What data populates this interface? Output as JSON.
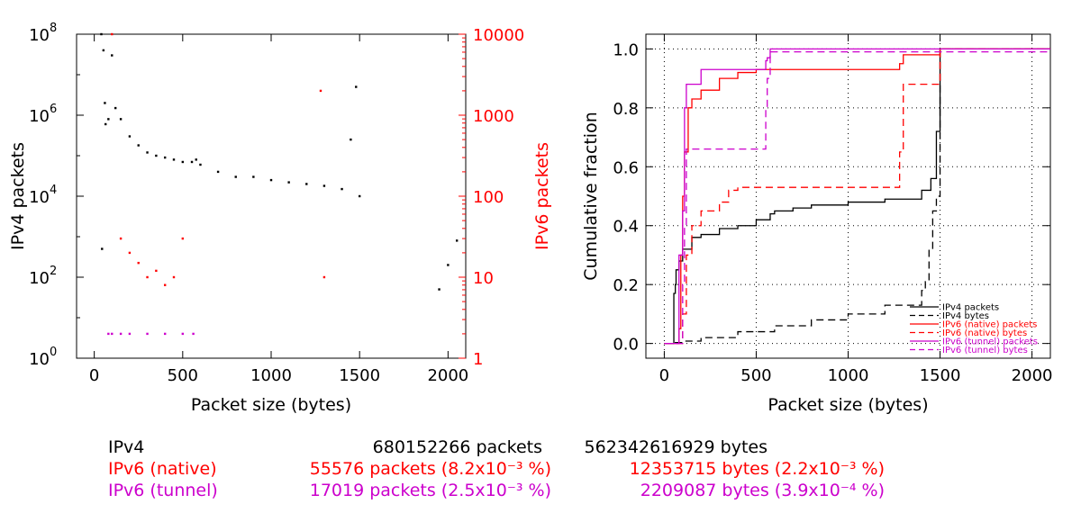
{
  "chart_data": [
    {
      "type": "scatter",
      "xlabel": "Packet size (bytes)",
      "ylabel_left": "IPv4 packets",
      "ylabel_right": "IPv6 packets",
      "xlim": [
        -100,
        2100
      ],
      "xticks": [
        0,
        500,
        1000,
        1500,
        2000
      ],
      "ylim_left_log10": [
        0,
        8
      ],
      "ylim_right_log10": [
        0,
        4
      ],
      "ytick_labels_left": [
        "10^0",
        "10^2",
        "10^4",
        "10^6",
        "10^8"
      ],
      "ytick_labels_right": [
        "1",
        "10",
        "100",
        "1000",
        "10000"
      ],
      "y_scale": "log",
      "series": [
        {
          "name": "IPv4",
          "color": "#000000",
          "axis": "left",
          "points": [
            [
              40,
              100000000.0
            ],
            [
              44,
              500
            ],
            [
              52,
              40000000.0
            ],
            [
              60,
              2000000.0
            ],
            [
              64,
              600000.0
            ],
            [
              80,
              800000.0
            ],
            [
              100,
              30000000.0
            ],
            [
              120,
              1500000.0
            ],
            [
              150,
              800000.0
            ],
            [
              200,
              300000.0
            ],
            [
              250,
              180000.0
            ],
            [
              300,
              120000.0
            ],
            [
              350,
              100000.0
            ],
            [
              400,
              90000.0
            ],
            [
              450,
              80000.0
            ],
            [
              500,
              70000.0
            ],
            [
              552,
              70000.0
            ],
            [
              576,
              80000.0
            ],
            [
              600,
              60000.0
            ],
            [
              700,
              40000.0
            ],
            [
              800,
              30000.0
            ],
            [
              900,
              30000.0
            ],
            [
              1000,
              25000.0
            ],
            [
              1100,
              22000.0
            ],
            [
              1200,
              20000.0
            ],
            [
              1300,
              18000.0
            ],
            [
              1400,
              15000.0
            ],
            [
              1450,
              250000.0
            ],
            [
              1480,
              5000000.0
            ],
            [
              1500,
              10000.0
            ],
            [
              1950,
              50
            ],
            [
              2000,
              200
            ],
            [
              2050,
              800
            ]
          ]
        },
        {
          "name": "IPv6 (native)",
          "color": "#ff0000",
          "axis": "right",
          "points": [
            [
              100,
              10000
            ],
            [
              150,
              30
            ],
            [
              200,
              20
            ],
            [
              250,
              15
            ],
            [
              300,
              10
            ],
            [
              350,
              12
            ],
            [
              400,
              8
            ],
            [
              450,
              10
            ],
            [
              500,
              30
            ],
            [
              1280,
              2000
            ],
            [
              1300,
              10
            ]
          ]
        },
        {
          "name": "IPv6 (tunnel)",
          "color": "#cc00cc",
          "axis": "right",
          "points": [
            [
              80,
              2
            ],
            [
              100,
              2
            ],
            [
              150,
              2
            ],
            [
              200,
              2
            ],
            [
              300,
              2
            ],
            [
              400,
              2
            ],
            [
              500,
              2
            ],
            [
              560,
              2
            ]
          ]
        }
      ]
    },
    {
      "type": "line",
      "xlabel": "Packet size (bytes)",
      "ylabel": "Cumulative fraction",
      "xlim": [
        -100,
        2100
      ],
      "ylim": [
        -0.05,
        1.05
      ],
      "xticks": [
        0,
        500,
        1000,
        1500,
        2000
      ],
      "yticks": [
        0.0,
        0.2,
        0.4,
        0.6,
        0.8,
        1.0
      ],
      "ytick_labels": [
        "0.0",
        "0.2",
        "0.4",
        "0.6",
        "0.8",
        "1.0"
      ],
      "xtick_labels": [
        "0",
        "500",
        "1000",
        "1500",
        "2000"
      ],
      "grid": true,
      "legend_position": "bottom-right",
      "series": [
        {
          "name": "IPv4 packets",
          "color": "#000000",
          "dashed": false,
          "x": [
            0,
            40,
            52,
            60,
            64,
            80,
            100,
            150,
            200,
            300,
            400,
            500,
            576,
            600,
            700,
            800,
            1000,
            1200,
            1400,
            1450,
            1480,
            1500,
            1500,
            2100
          ],
          "y": [
            0,
            0,
            0.17,
            0.2,
            0.25,
            0.28,
            0.32,
            0.36,
            0.37,
            0.39,
            0.4,
            0.42,
            0.44,
            0.45,
            0.46,
            0.47,
            0.48,
            0.49,
            0.52,
            0.56,
            0.72,
            0.78,
            1.0,
            1.0
          ]
        },
        {
          "name": "IPv4 bytes",
          "color": "#000000",
          "dashed": true,
          "x": [
            0,
            40,
            60,
            100,
            200,
            400,
            600,
            800,
            1000,
            1200,
            1400,
            1420,
            1440,
            1460,
            1480,
            1500,
            1500,
            2100
          ],
          "y": [
            0,
            0,
            0.003,
            0.008,
            0.02,
            0.04,
            0.06,
            0.08,
            0.1,
            0.13,
            0.18,
            0.21,
            0.32,
            0.45,
            0.5,
            0.65,
            1.0,
            1.0
          ]
        },
        {
          "name": "IPv6 (native) packets",
          "color": "#ff0000",
          "dashed": false,
          "x": [
            0,
            60,
            80,
            90,
            100,
            110,
            130,
            150,
            200,
            300,
            400,
            500,
            600,
            1280,
            1300,
            1500,
            1500,
            2100
          ],
          "y": [
            0,
            0,
            0.05,
            0.3,
            0.5,
            0.65,
            0.8,
            0.83,
            0.86,
            0.9,
            0.92,
            0.93,
            0.93,
            0.95,
            0.98,
            0.98,
            1.0,
            1.0
          ]
        },
        {
          "name": "IPv6 (native) bytes",
          "color": "#ff0000",
          "dashed": true,
          "x": [
            0,
            80,
            100,
            120,
            150,
            200,
            300,
            350,
            400,
            1280,
            1280,
            1300,
            1500,
            1500,
            2100
          ],
          "y": [
            0,
            0,
            0.1,
            0.3,
            0.4,
            0.45,
            0.48,
            0.52,
            0.53,
            0.53,
            0.65,
            0.88,
            0.88,
            1.0,
            1.0
          ]
        },
        {
          "name": "IPv6 (tunnel) packets",
          "color": "#cc00cc",
          "dashed": false,
          "x": [
            0,
            60,
            80,
            100,
            110,
            120,
            200,
            500,
            552,
            560,
            576,
            2100
          ],
          "y": [
            0,
            0,
            0.3,
            0.45,
            0.8,
            0.88,
            0.93,
            0.93,
            0.96,
            0.97,
            1.0,
            1.0
          ]
        },
        {
          "name": "IPv6 (tunnel) bytes",
          "color": "#cc00cc",
          "dashed": true,
          "x": [
            0,
            80,
            100,
            110,
            120,
            200,
            500,
            552,
            560,
            576,
            2100
          ],
          "y": [
            0,
            0,
            0.2,
            0.4,
            0.66,
            0.66,
            0.66,
            0.8,
            0.9,
            0.99,
            0.99
          ]
        }
      ]
    }
  ],
  "summary": [
    {
      "label": "IPv4",
      "packets": "680152266 packets",
      "bytes": "562342616929 bytes",
      "color": "#000000"
    },
    {
      "label": "IPv6 (native)",
      "packets": "55576 packets (8.2x10⁻³ %)",
      "bytes": "12353715 bytes (2.2x10⁻³ %)",
      "color": "#ff0000"
    },
    {
      "label": "IPv6 (tunnel)",
      "packets": "17019 packets (2.5x10⁻³ %)",
      "bytes": "2209087 bytes (3.9x10⁻⁴ %)",
      "color": "#cc00cc"
    }
  ]
}
